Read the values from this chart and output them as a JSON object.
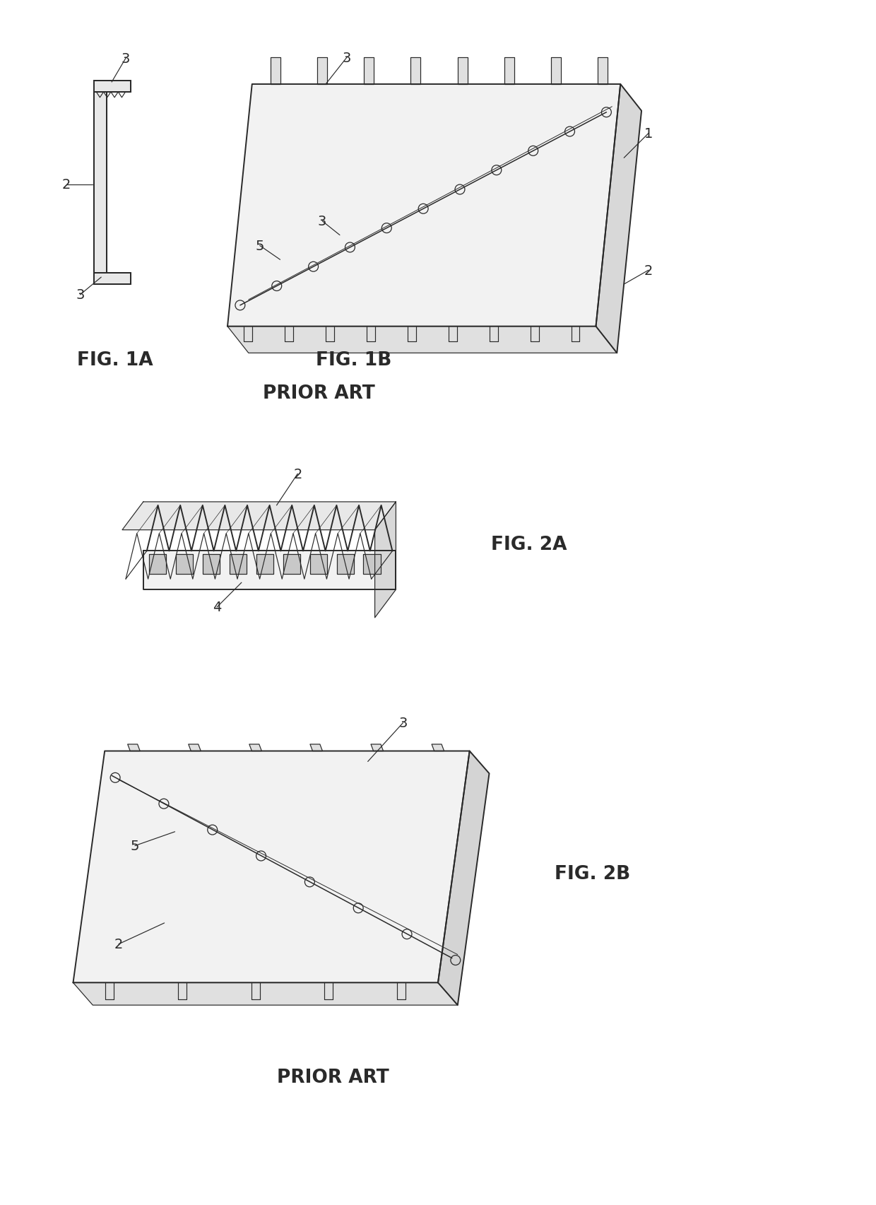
{
  "background_color": "#ffffff",
  "line_color": "#2a2a2a",
  "fig_width": 12.4,
  "fig_height": 17.06,
  "dpi": 100,
  "labels": {
    "fig1a": "FIG. 1A",
    "fig1b": "FIG. 1B",
    "prior_art_1": "PRIOR ART",
    "fig2a": "FIG. 2A",
    "fig2b": "FIG. 2B",
    "prior_art_2": "PRIOR ART"
  },
  "font_size_label": 19,
  "font_size_ref": 14,
  "lw_main": 1.4,
  "lw_thin": 0.85,
  "lw_leader": 0.85
}
